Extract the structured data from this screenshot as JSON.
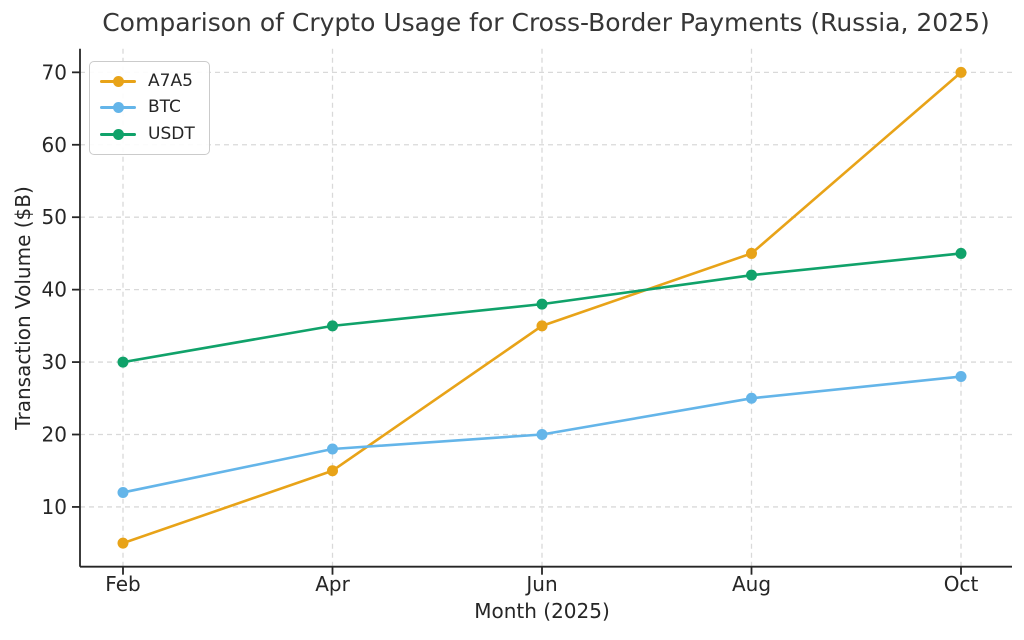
{
  "chart_data": {
    "type": "line",
    "title": "Comparison of Crypto Usage for Cross-Border Payments (Russia, 2025)",
    "xlabel": "Month (2025)",
    "ylabel": "Transaction Volume ($B)",
    "categories": [
      "Feb",
      "Apr",
      "Jun",
      "Aug",
      "Oct"
    ],
    "yticks": [
      10,
      20,
      30,
      40,
      50,
      60,
      70
    ],
    "ylim": [
      1.75,
      73.25
    ],
    "grid": true,
    "grid_style": "dashed",
    "legend_position": "upper-left",
    "series": [
      {
        "name": "A7A5",
        "color": "#E8A318",
        "values": [
          5,
          15,
          35,
          45,
          70
        ]
      },
      {
        "name": "BTC",
        "color": "#64B5E9",
        "values": [
          12,
          18,
          20,
          25,
          28
        ]
      },
      {
        "name": "USDT",
        "color": "#10A26A",
        "values": [
          30,
          35,
          38,
          42,
          45
        ]
      }
    ],
    "axis_color": "#262626",
    "grid_color": "#D9D9D9"
  }
}
